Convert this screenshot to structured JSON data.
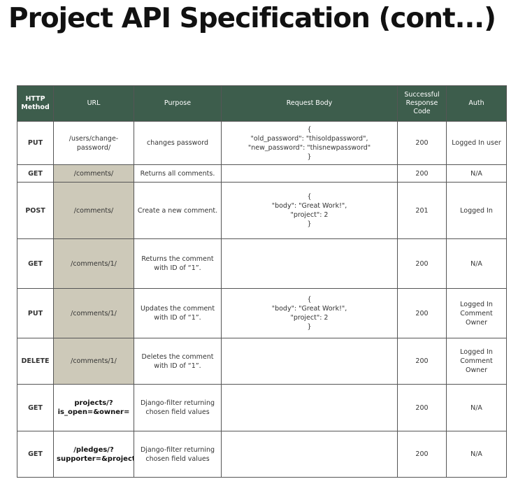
{
  "title": "Project API Specification (cont...)",
  "headers": {
    "method": "HTTP\nMethod",
    "url": "URL",
    "purpose": "Purpose",
    "body": "Request Body",
    "code": "Successful Response Code",
    "auth": "Auth"
  },
  "rows": [
    {
      "method": "PUT",
      "url": "/users/change-\npassword/",
      "purpose": "changes password",
      "body": "{\n\"old_password\": \"thisoldpassword\",\n\"new_password\": \"thisnewpassword\"\n}",
      "code": "200",
      "auth": "Logged In user"
    },
    {
      "method": "GET",
      "url": "/comments/",
      "purpose": "Returns all comments.",
      "body": "",
      "code": "200",
      "auth": "N/A"
    },
    {
      "method": "POST",
      "url": "/comments/",
      "purpose": "Create a new comment.",
      "body": "{\n\"body\": \"Great Work!\",\n\"project\": 2\n}",
      "code": "201",
      "auth": "Logged In"
    },
    {
      "method": "GET",
      "url": "/comments/1/",
      "purpose": "Returns the comment\nwith ID of “1”.",
      "body": "",
      "code": "200",
      "auth": "N/A"
    },
    {
      "method": "PUT",
      "url": "/comments/1/",
      "purpose": "Updates the comment\nwith ID of “1”.",
      "body": "{\n\"body\": \"Great Work!\",\n\"project\": 2\n}",
      "code": "200",
      "auth": "Logged In\nComment\nOwner"
    },
    {
      "method": "DELETE",
      "url": "/comments/1/",
      "purpose": "Deletes the comment\nwith ID of “1”.",
      "body": "",
      "code": "200",
      "auth": "Logged In\nComment\nOwner"
    },
    {
      "method": "GET",
      "url": "projects/?\nis_open=&owner=",
      "purpose": "Django-filter returning\nchosen field values",
      "body": "",
      "code": "200",
      "auth": "N/A"
    },
    {
      "method": "GET",
      "url": "/pledges/?\nsupporter=&project=",
      "purpose": "Django-filter returning\nchosen field values",
      "body": "",
      "code": "200",
      "auth": "N/A"
    }
  ]
}
